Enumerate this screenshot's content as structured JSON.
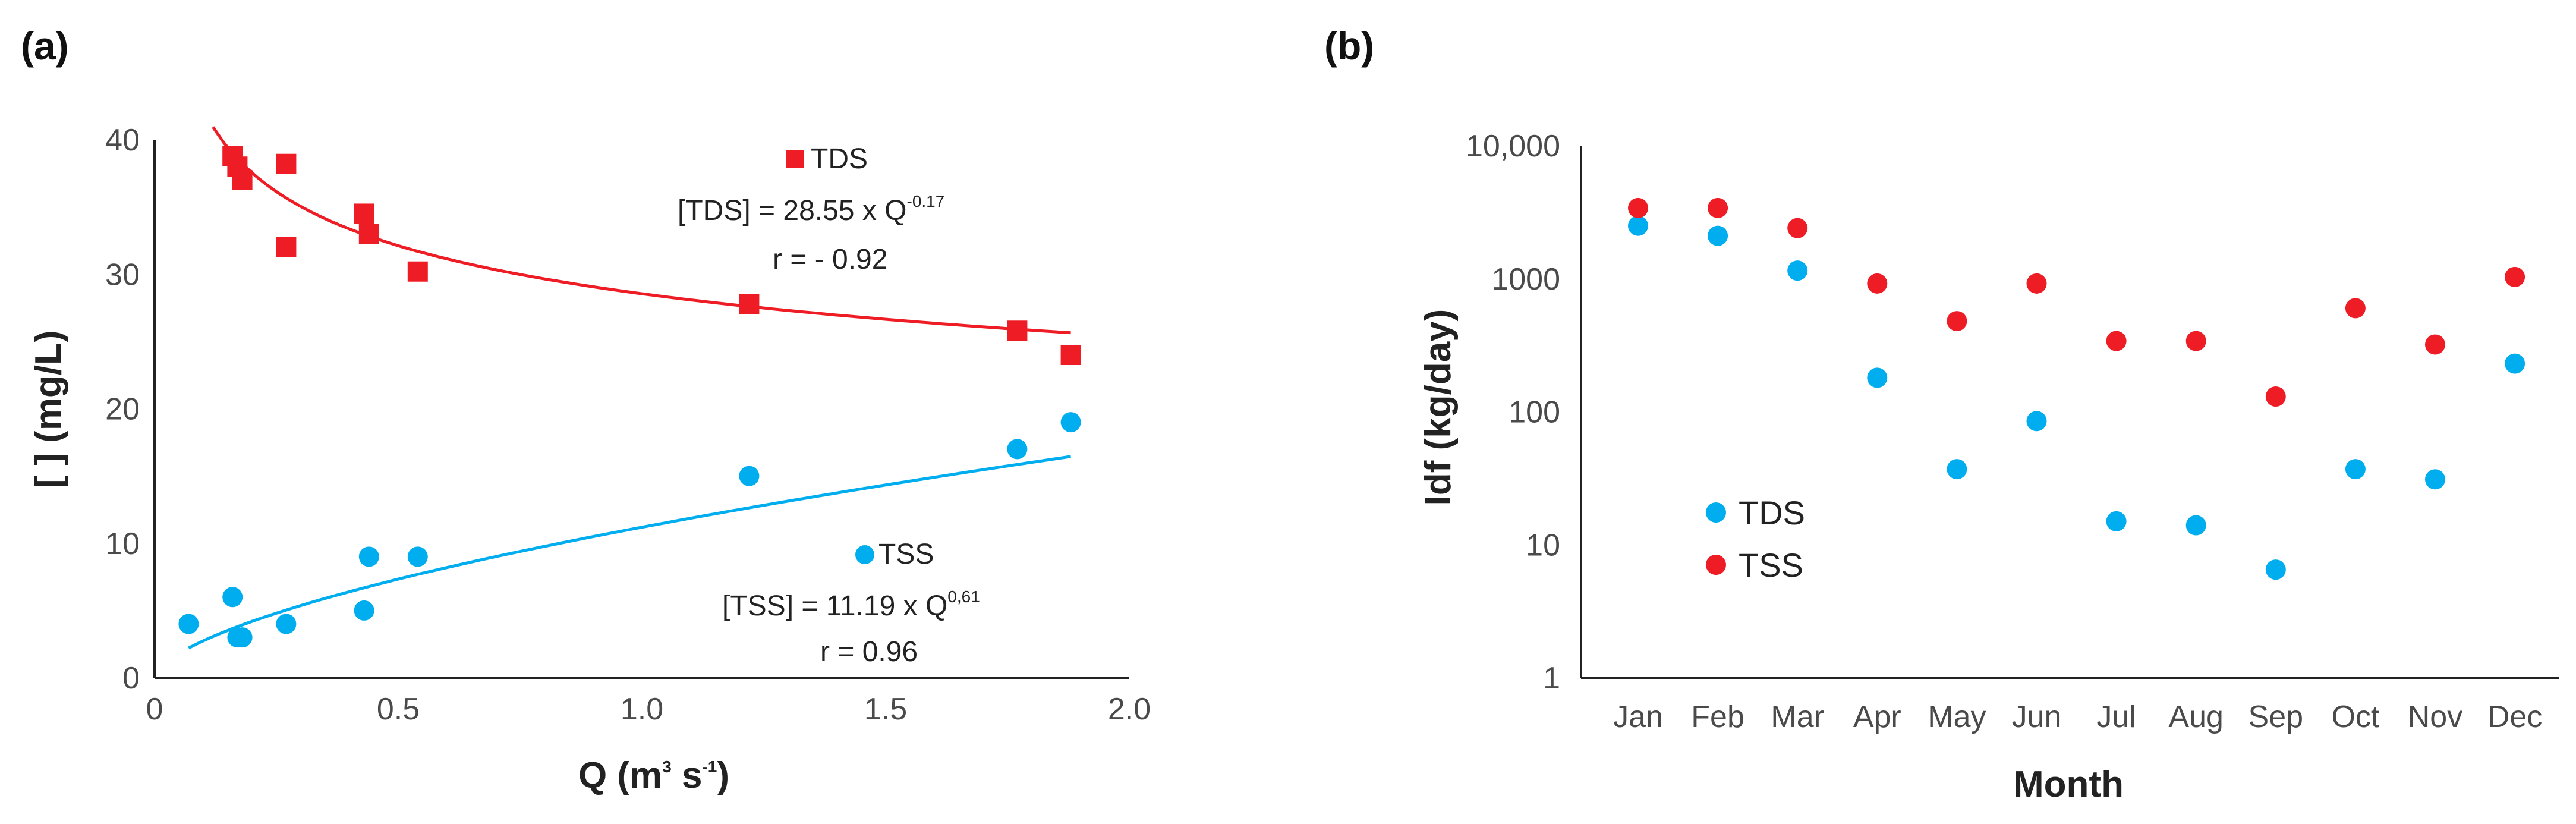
{
  "chart_data": [
    {
      "type": "scatter",
      "panel_label": "(a)",
      "xlabel": {
        "base": "Q (m",
        "sup1": "3",
        "mid": " s",
        "sup2": "-1",
        "end": ")"
      },
      "ylabel": "[ ] (mg/L)",
      "xlim": [
        0,
        2.0
      ],
      "ylim": [
        0,
        40
      ],
      "x_ticks": [
        0,
        0.5,
        1.0,
        1.5,
        2.0
      ],
      "x_tick_labels": [
        "0",
        "0.5",
        "1.0",
        "1.5",
        "2.0"
      ],
      "y_ticks": [
        0,
        10,
        20,
        30,
        40
      ],
      "y_tick_labels": [
        "0",
        "10",
        "20",
        "30",
        "40"
      ],
      "grid": false,
      "series": [
        {
          "name": "TDS",
          "marker": "square",
          "color": "#ee1c25",
          "points": [
            [
              0.16,
              38.8
            ],
            [
              0.17,
              38.0
            ],
            [
              0.18,
              37.0
            ],
            [
              0.27,
              38.2
            ],
            [
              0.27,
              32.0
            ],
            [
              0.43,
              34.5
            ],
            [
              0.44,
              33.0
            ],
            [
              0.54,
              30.2
            ],
            [
              1.22,
              27.8
            ],
            [
              1.77,
              25.8
            ],
            [
              1.88,
              24.0
            ]
          ],
          "fit": {
            "a": 28.55,
            "b": -0.17,
            "x_range": [
              0.12,
              1.88
            ]
          },
          "annotation": {
            "legend": "TDS",
            "eq_base": "[TDS] = 28.55 x Q",
            "eq_exp": "-0.17",
            "r": "r = - 0.92"
          }
        },
        {
          "name": "TSS",
          "marker": "circle",
          "color": "#00aeef",
          "points": [
            [
              0.07,
              4.0
            ],
            [
              0.16,
              6.0
            ],
            [
              0.17,
              3.0
            ],
            [
              0.18,
              3.0
            ],
            [
              0.27,
              4.0
            ],
            [
              0.43,
              5.0
            ],
            [
              0.44,
              9.0
            ],
            [
              0.54,
              9.0
            ],
            [
              1.22,
              15.0
            ],
            [
              1.77,
              17.0
            ],
            [
              1.88,
              19.0
            ]
          ],
          "fit": {
            "a": 11.19,
            "b": 0.61,
            "x_range": [
              0.07,
              1.88
            ]
          },
          "annotation": {
            "legend": "TSS",
            "eq_base": "[TSS] = 11.19 x Q",
            "eq_exp": "0,61",
            "r": "r = 0.96"
          }
        }
      ]
    },
    {
      "type": "scatter",
      "panel_label": "(b)",
      "xlabel": "Month",
      "ylabel": "Idf (kg/day)",
      "y_scale": "log",
      "ylim": [
        1,
        10000
      ],
      "y_ticks": [
        1,
        10,
        100,
        1000,
        10000
      ],
      "y_tick_labels": [
        "1",
        "10",
        "100",
        "1000",
        "10,000"
      ],
      "categories": [
        "Jan",
        "Feb",
        "Mar",
        "Apr",
        "May",
        "Jun",
        "Jul",
        "Aug",
        "Sep",
        "Oct",
        "Nov",
        "Dec"
      ],
      "legend_position": "lower-left",
      "grid": false,
      "series": [
        {
          "name": "TDS",
          "color": "#00aeef",
          "values": [
            2500,
            2100,
            1150,
            180,
            37,
            85,
            15,
            14,
            6.5,
            37,
            31,
            230
          ]
        },
        {
          "name": "TSS",
          "color": "#ee1c25",
          "values": [
            3400,
            3400,
            2400,
            920,
            480,
            920,
            340,
            340,
            130,
            600,
            320,
            1030
          ]
        }
      ]
    }
  ]
}
